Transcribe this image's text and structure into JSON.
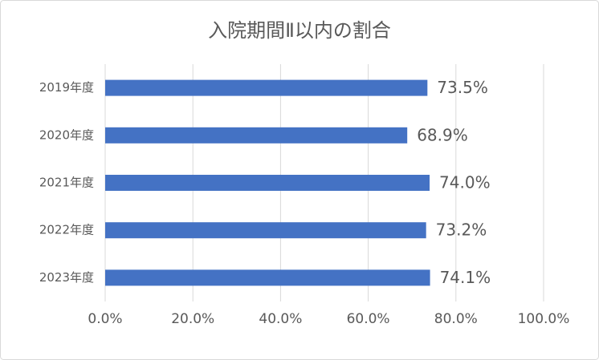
{
  "chart_data": {
    "type": "bar",
    "orientation": "horizontal",
    "title": "入院期間Ⅱ以内の割合",
    "categories": [
      "2019年度",
      "2020年度",
      "2021年度",
      "2022年度",
      "2023年度"
    ],
    "values": [
      73.5,
      68.9,
      74.0,
      73.2,
      74.1
    ],
    "value_labels": [
      "73.5%",
      "68.9%",
      "74.0%",
      "73.2%",
      "74.1%"
    ],
    "color": "#4472c4",
    "xlim": [
      0,
      100
    ],
    "xticks": [
      {
        "value": 0,
        "label": "0.0%"
      },
      {
        "value": 20,
        "label": "20.0%"
      },
      {
        "value": 40,
        "label": "40.0%"
      },
      {
        "value": 60,
        "label": "60.0%"
      },
      {
        "value": 80,
        "label": "80.0%"
      },
      {
        "value": 100,
        "label": "100.0%"
      }
    ],
    "grid": true
  }
}
